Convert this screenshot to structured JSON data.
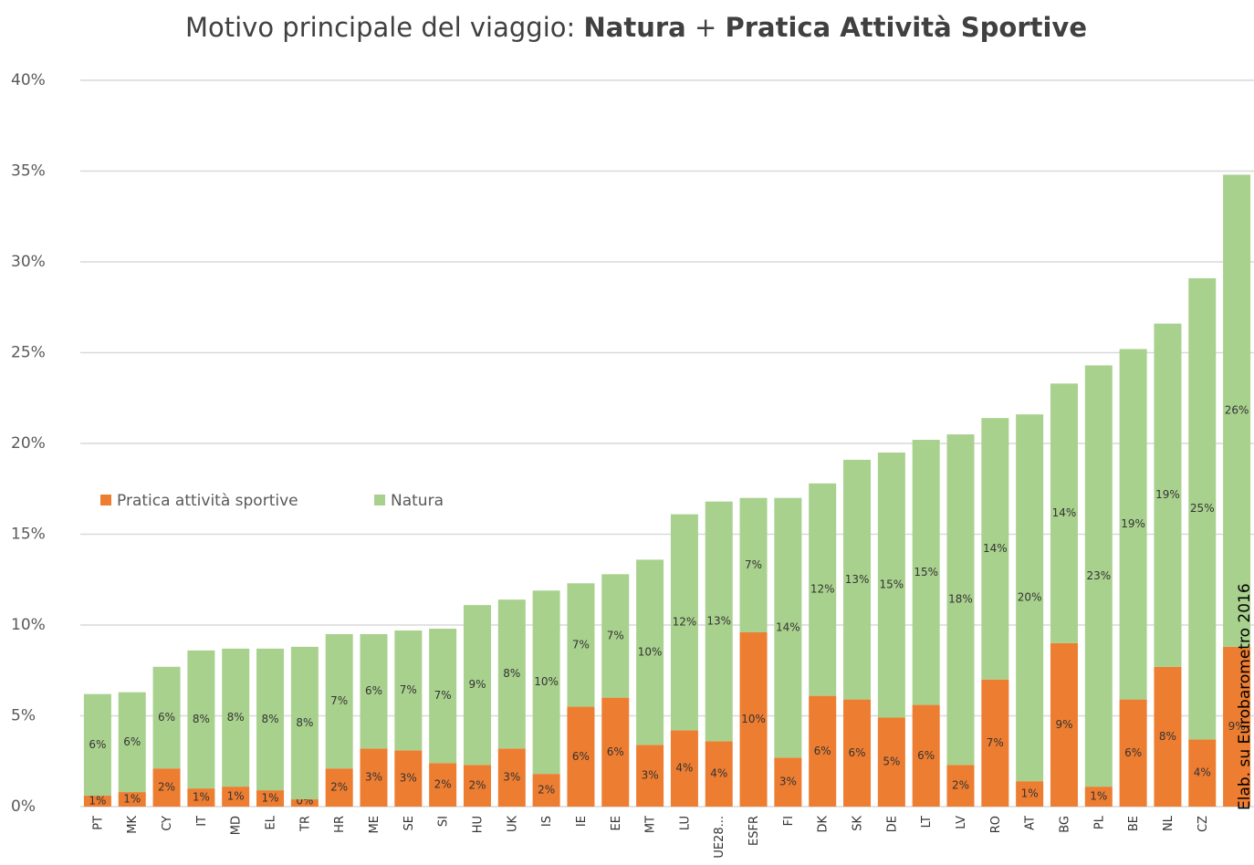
{
  "chart_data": {
    "type": "stacked_bar",
    "title": [
      "Motivo principale del viaggio:",
      "Natura",
      "+",
      "Pratica Attività Sportive"
    ],
    "categories": [
      "PT",
      "MK",
      "CY",
      "IT",
      "MD",
      "EL",
      "TR",
      "HR",
      "ME",
      "SE",
      "SI",
      "HU",
      "UK",
      "IS",
      "IE",
      "EE",
      "MT",
      "LU",
      "UE28...",
      "ESFR",
      "FI",
      "DK",
      "SK",
      "DE",
      "LT",
      "LV",
      "RO",
      "AT",
      "BG",
      "PL",
      "BE",
      "NL",
      "CZ",
      null
    ],
    "series": [
      {
        "name": "Pratica attività sportive",
        "color": "#ed7d31",
        "values": [
          0.6,
          0.8,
          2.1,
          1.0,
          1.1,
          0.9,
          0.4,
          2.1,
          3.2,
          3.1,
          2.4,
          2.3,
          3.2,
          1.8,
          5.5,
          6.0,
          3.4,
          4.2,
          3.6,
          9.6,
          2.7,
          6.1,
          5.9,
          4.9,
          5.6,
          2.3,
          7.0,
          1.4,
          9.0,
          1.1,
          5.9,
          7.7,
          3.7,
          8.8
        ],
        "value_labels": [
          "1%",
          "1%",
          "2%",
          "1%",
          "1%",
          "1%",
          "0%",
          "2%",
          "3%",
          "3%",
          "2%",
          "2%",
          "3%",
          "2%",
          "6%",
          "6%",
          "3%",
          "4%",
          "4%",
          "10%",
          "3%",
          "6%",
          "6%",
          "5%",
          "6%",
          "2%",
          "7%",
          "1%",
          "9%",
          "1%",
          "6%",
          "8%",
          "4%",
          "9%"
        ]
      },
      {
        "name": "Natura",
        "color": "#a9d18e",
        "values": [
          5.6,
          5.5,
          5.6,
          7.6,
          7.6,
          7.8,
          8.4,
          7.4,
          6.3,
          6.6,
          7.4,
          8.8,
          8.2,
          10.1,
          6.8,
          6.8,
          10.2,
          11.9,
          13.2,
          7.4,
          14.3,
          11.7,
          13.2,
          14.6,
          14.6,
          18.2,
          14.4,
          20.2,
          14.3,
          23.2,
          19.3,
          18.9,
          25.4,
          26.0
        ],
        "value_labels": [
          "6%",
          "6%",
          "6%",
          "8%",
          "8%",
          "8%",
          "8%",
          "7%",
          "6%",
          "7%",
          "7%",
          "9%",
          "8%",
          "10%",
          "7%",
          "7%",
          "10%",
          "12%",
          "13%",
          "7%",
          "14%",
          "12%",
          "13%",
          "15%",
          "15%",
          "18%",
          "14%",
          "20%",
          "14%",
          "23%",
          "19%",
          "19%",
          "25%",
          "26%"
        ]
      }
    ],
    "ylim": [
      0,
      40
    ],
    "yticks": [
      {
        "value": 0,
        "label": "0%"
      },
      {
        "value": 5,
        "label": "5%"
      },
      {
        "value": 10,
        "label": "10%"
      },
      {
        "value": 15,
        "label": "15%"
      },
      {
        "value": 20,
        "label": "20%"
      },
      {
        "value": 25,
        "label": "25%"
      },
      {
        "value": 30,
        "label": "30%"
      },
      {
        "value": 35,
        "label": "35%"
      },
      {
        "value": 40,
        "label": "40%"
      }
    ],
    "grid": true,
    "legend": "left",
    "source": "Elab. su Eurobarometro 2016"
  }
}
